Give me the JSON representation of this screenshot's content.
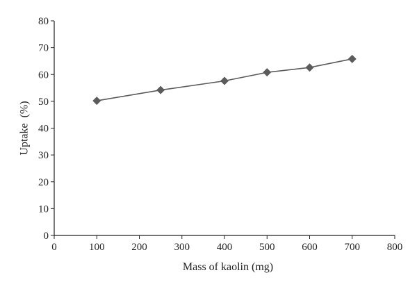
{
  "chart_data": {
    "type": "line",
    "title": "",
    "xlabel": "Mass of kaolin (mg)",
    "ylabel": "Uptake  (%)",
    "xlim": [
      0,
      800
    ],
    "ylim": [
      0,
      80
    ],
    "xticks": [
      0,
      100,
      200,
      300,
      400,
      500,
      600,
      700,
      800
    ],
    "yticks": [
      0,
      10,
      20,
      30,
      40,
      50,
      60,
      70,
      80
    ],
    "grid": false,
    "legend": "none",
    "series": [
      {
        "marker": "diamond",
        "color": "#5b5b5b",
        "points": [
          {
            "x": 100,
            "y": 50.2
          },
          {
            "x": 250,
            "y": 54.2
          },
          {
            "x": 400,
            "y": 57.6
          },
          {
            "x": 500,
            "y": 60.8
          },
          {
            "x": 600,
            "y": 62.6
          },
          {
            "x": 700,
            "y": 65.8
          }
        ]
      }
    ]
  }
}
